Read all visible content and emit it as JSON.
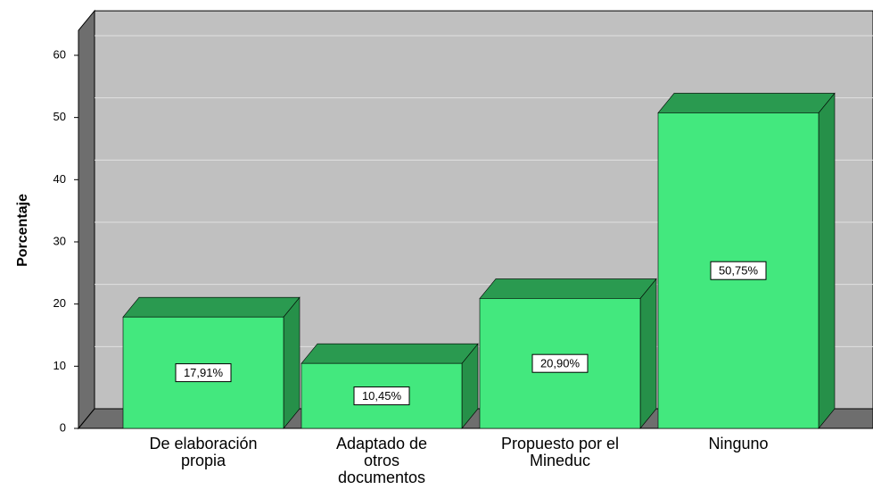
{
  "chart_data": {
    "type": "bar3d",
    "y_label": "Porcentaje",
    "categories": [
      "De elaboración propia",
      "Adaptado de otros documentos",
      "Propuesto por el Mineduc",
      "Ninguno"
    ],
    "values": [
      17.91,
      10.45,
      20.9,
      50.75
    ],
    "value_labels": [
      "17,91%",
      "10,45%",
      "20,90%",
      "50,75%"
    ],
    "color": "#43e87e",
    "ylim": [
      0,
      64
    ],
    "yticks": [
      0,
      10,
      20,
      30,
      40,
      50,
      60
    ],
    "grid": true
  }
}
